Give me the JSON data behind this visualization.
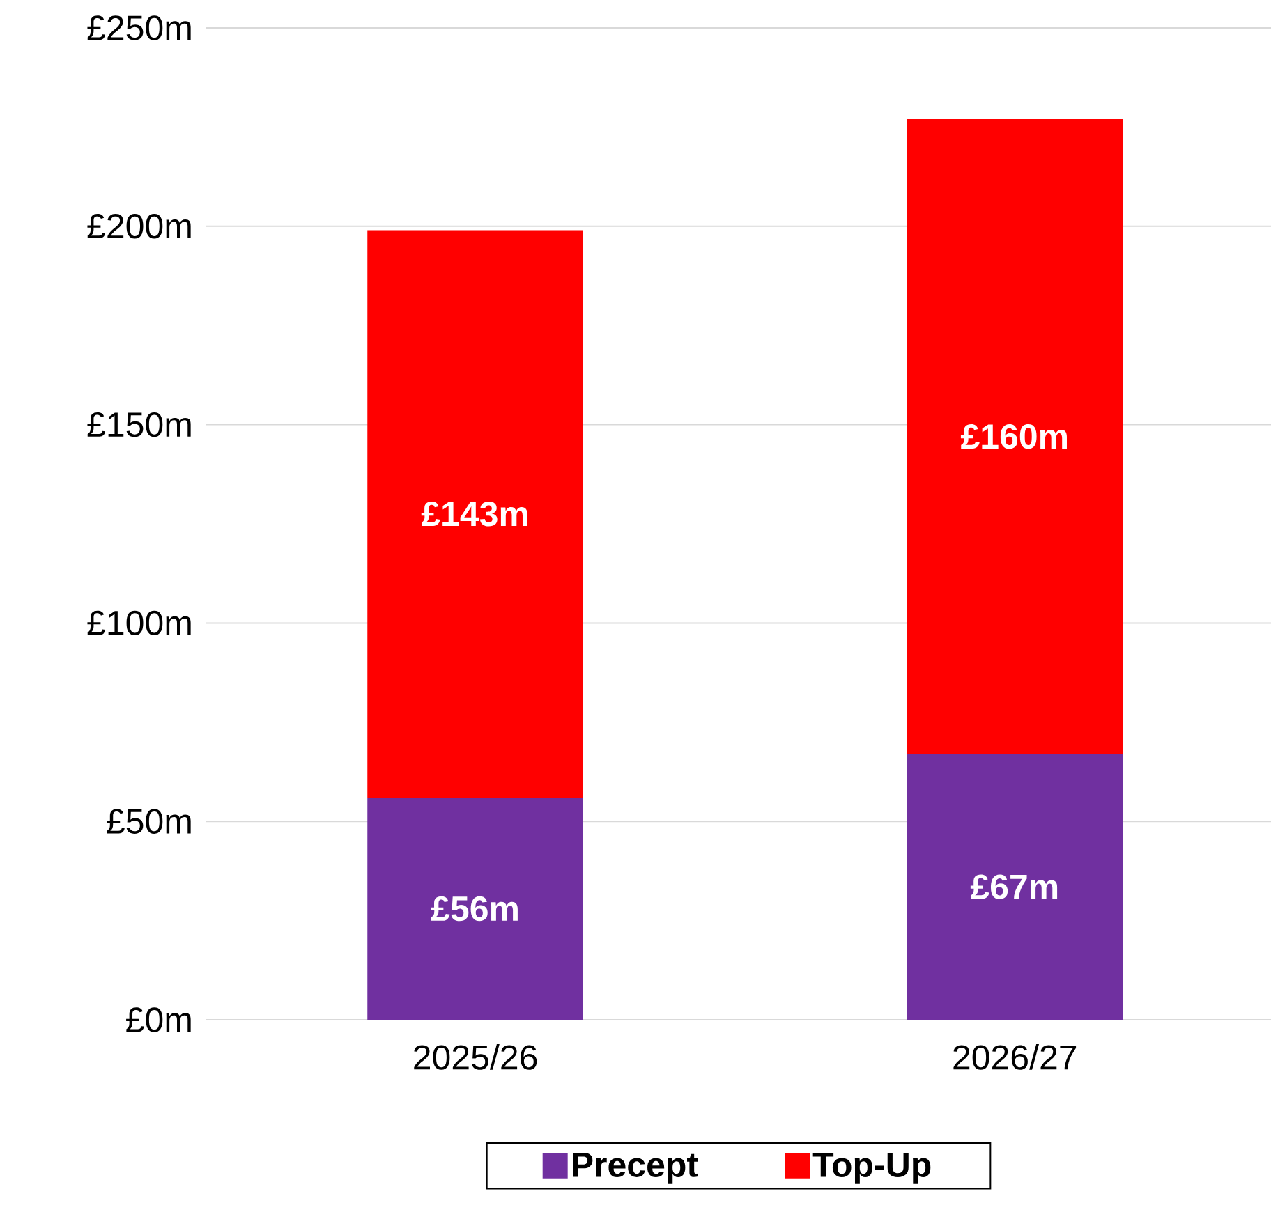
{
  "chart_data": {
    "type": "bar",
    "stacked": true,
    "categories": [
      "2025/26",
      "2026/27"
    ],
    "series": [
      {
        "name": "Precept",
        "color": "#7030a0",
        "values": [
          56,
          67
        ],
        "value_labels": [
          "£56m",
          "£67m"
        ]
      },
      {
        "name": "Top-Up",
        "color": "#ff0000",
        "values": [
          143,
          160
        ],
        "value_labels": [
          "£143m",
          "£160m"
        ]
      }
    ],
    "ylim": [
      0,
      250
    ],
    "yticks": [
      {
        "value": 0,
        "label": "£0m"
      },
      {
        "value": 50,
        "label": "£50m"
      },
      {
        "value": 100,
        "label": "£100m"
      },
      {
        "value": 150,
        "label": "£150m"
      },
      {
        "value": 200,
        "label": "£200m"
      },
      {
        "value": 250,
        "label": "£250m"
      }
    ],
    "grid": "y",
    "legend": "bottom"
  }
}
